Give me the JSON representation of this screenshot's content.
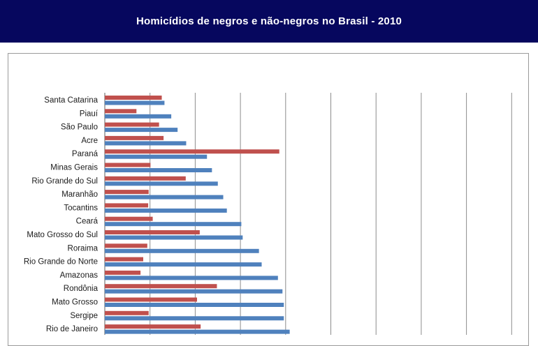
{
  "header": {
    "title": "Homicídios de negros e não-negros no Brasil - 2010"
  },
  "colors": {
    "header_bg": "#06075e",
    "series_red": "#c0504d",
    "series_blue": "#4f81bd",
    "grid": "#8c8c8c"
  },
  "chart_data": {
    "type": "bar",
    "orientation": "horizontal",
    "title": "",
    "xlabel": "",
    "ylabel": "",
    "grid": true,
    "legend": "none",
    "xlim": [
      0,
      90
    ],
    "gridline_step": 10,
    "categories": [
      "Santa Catarina",
      "Piauí",
      "São Paulo",
      "Acre",
      "Paraná",
      "Minas Gerais",
      "Rio Grande do Sul",
      "Maranhão",
      "Tocantins",
      "Ceará",
      "Mato Grosso do Sul",
      "Roraima",
      "Rio Grande do Norte",
      "Amazonas",
      "Rondônia",
      "Mato Grosso",
      "Sergipe",
      "Rio de Janeiro"
    ],
    "series": [
      {
        "color": "#c0504d",
        "values": [
          12.6,
          7.0,
          12.0,
          13.0,
          38.6,
          10.1,
          17.9,
          9.7,
          9.6,
          10.6,
          21.0,
          9.4,
          8.5,
          7.9,
          24.8,
          20.4,
          9.7,
          21.2
        ]
      },
      {
        "color": "#4f81bd",
        "values": [
          13.2,
          14.7,
          16.1,
          18.0,
          22.6,
          23.7,
          25.0,
          26.2,
          27.0,
          30.2,
          30.5,
          34.1,
          34.7,
          38.3,
          39.3,
          39.6,
          39.6,
          40.9
        ]
      }
    ]
  }
}
